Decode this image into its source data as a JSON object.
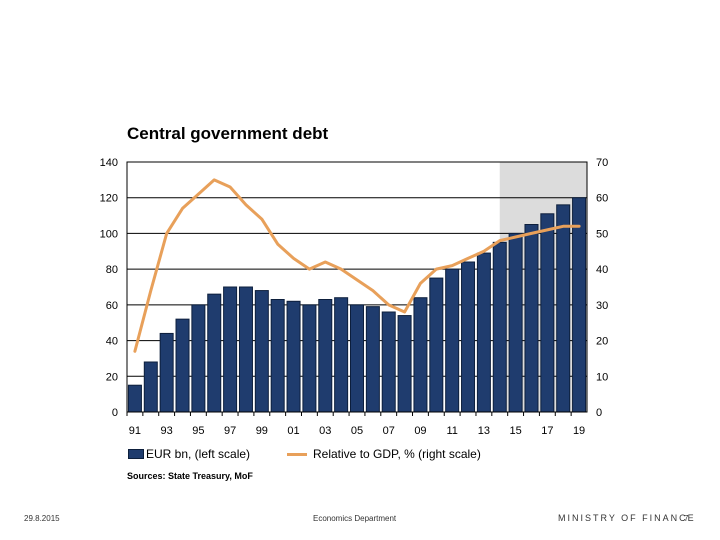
{
  "chart_data": {
    "type": "bar+line",
    "title": "Central government debt",
    "categories": [
      "91",
      "92",
      "93",
      "94",
      "95",
      "96",
      "97",
      "98",
      "99",
      "00",
      "01",
      "02",
      "03",
      "04",
      "05",
      "06",
      "07",
      "08",
      "09",
      "10",
      "11",
      "12",
      "13",
      "14",
      "15",
      "16",
      "17",
      "18",
      "19"
    ],
    "x_tick_labels": [
      "91",
      "93",
      "95",
      "97",
      "99",
      "01",
      "03",
      "05",
      "07",
      "09",
      "11",
      "13",
      "15",
      "17",
      "19"
    ],
    "series": [
      {
        "name": "EUR bn, (left scale)",
        "type": "bar",
        "axis": "left",
        "color": "#1f3c6e",
        "values": [
          15,
          28,
          44,
          52,
          60,
          66,
          70,
          70,
          68,
          63,
          62,
          60,
          63,
          64,
          60,
          59,
          56,
          54,
          64,
          75,
          80,
          84,
          89,
          95,
          100,
          105,
          111,
          116,
          120
        ]
      },
      {
        "name": "Relative to GDP, % (right scale)",
        "type": "line",
        "axis": "right",
        "color": "#e8a05a",
        "values": [
          17,
          34,
          50,
          57,
          61,
          65,
          63,
          58,
          54,
          47,
          43,
          40,
          42,
          40,
          37,
          34,
          30,
          28,
          36,
          40,
          41,
          43,
          45,
          48,
          49,
          50,
          51,
          52,
          52
        ]
      }
    ],
    "left_axis": {
      "ylim": [
        0,
        140
      ],
      "ticks": [
        "0",
        "20",
        "40",
        "60",
        "80",
        "100",
        "120",
        "140"
      ]
    },
    "right_axis": {
      "ylim": [
        0,
        70
      ],
      "ticks": [
        "0",
        "10",
        "20",
        "30",
        "40",
        "50",
        "60",
        "70"
      ]
    },
    "forecast_shading": {
      "from_category": "15",
      "to_category": "19",
      "color": "#dcdcdc"
    },
    "grid": true,
    "legend_position": "bottom"
  },
  "source_text": "Sources: State Treasury, MoF",
  "footer": {
    "date": "29.8.2015",
    "department": "Economics Department",
    "brand": "MINISTRY OF FINANCE",
    "page_number": "7"
  }
}
